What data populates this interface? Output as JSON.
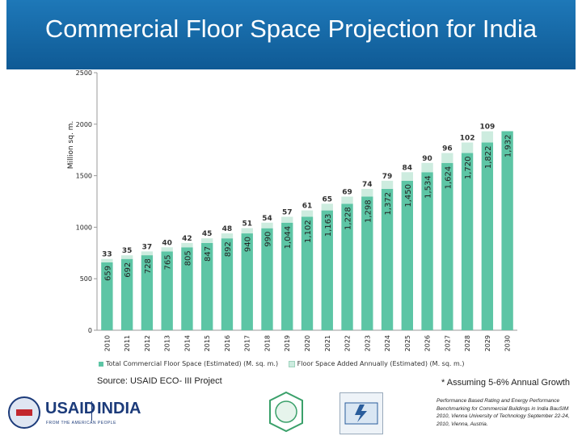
{
  "header": {
    "title": "Commercial Floor Space Projection for India"
  },
  "chart_data": {
    "type": "bar",
    "stacked": true,
    "ylabel": "Million sq. m.",
    "ylim": [
      0,
      2500
    ],
    "yticks": [
      0,
      500,
      1000,
      1500,
      2000,
      2500
    ],
    "categories": [
      "2010",
      "2011",
      "2012",
      "2013",
      "2014",
      "2015",
      "2016",
      "2017",
      "2018",
      "2019",
      "2020",
      "2021",
      "2022",
      "2023",
      "2024",
      "2025",
      "2026",
      "2027",
      "2028",
      "2029",
      "2030"
    ],
    "series": [
      {
        "name": "Total Commercial Floor Space (Estimated) (M. sq. m.)",
        "color": "#5dc5a5",
        "values": [
          659,
          692,
          728,
          765,
          805,
          847,
          892,
          940,
          990,
          1044,
          1102,
          1163,
          1228,
          1298,
          1372,
          1450,
          1534,
          1624,
          1720,
          1822,
          1932
        ],
        "labels": [
          "659",
          "692",
          "728",
          "765",
          "805",
          "847",
          "892",
          "940",
          "990",
          "1,044",
          "1,102",
          "1,163",
          "1,228",
          "1,298",
          "1,372",
          "1,450",
          "1,534",
          "1,624",
          "1,720",
          "1,822",
          "1,932"
        ]
      },
      {
        "name": "Floor Space Added Annually (Estimated) (M. sq. m.)",
        "color": "#cdecdf",
        "values": [
          33,
          35,
          37,
          40,
          42,
          45,
          48,
          51,
          54,
          57,
          61,
          65,
          69,
          74,
          79,
          84,
          90,
          96,
          102,
          109,
          null
        ],
        "labels": [
          "33",
          "35",
          "37",
          "40",
          "42",
          "45",
          "48",
          "51",
          "54",
          "57",
          "61",
          "65",
          "69",
          "74",
          "79",
          "84",
          "90",
          "96",
          "102",
          "109",
          ""
        ]
      }
    ],
    "legend_position": "bottom",
    "grid": false
  },
  "source": "Source: USAID ECO- III Project",
  "footnote": "* Assuming 5-6% Annual Growth",
  "citation": "Performance Based Rating and Energy Performance Benchmarking for Commercial Buildings in India BauSIM 2010, Vienna University of Technology September 22-24, 2010, Vienna, Austria.",
  "logos": {
    "usaid": "USAID",
    "india": "INDIA",
    "usaid_tagline": "FROM THE AMERICAN PEOPLE"
  }
}
